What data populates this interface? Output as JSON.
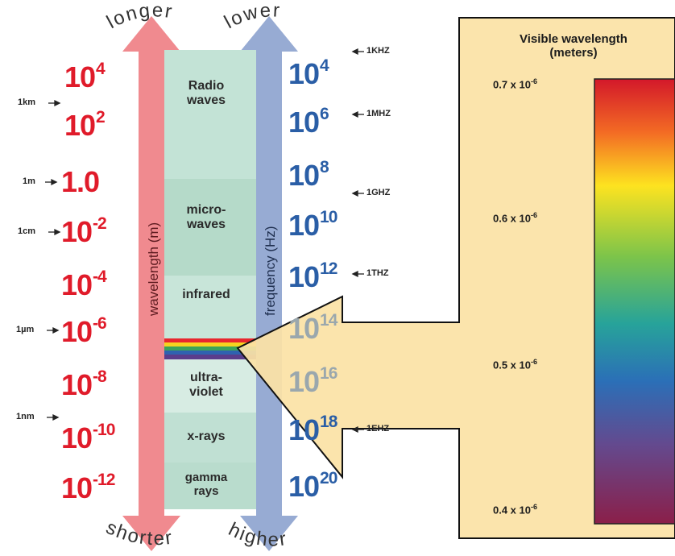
{
  "visible_panel": {
    "title_line1": "Visible wavelength",
    "title_line2": "(meters)",
    "ticks": [
      {
        "base": "0.7 x 10",
        "exp": "-6"
      },
      {
        "base": "0.6 x 10",
        "exp": "-6"
      },
      {
        "base": "0.5 x 10",
        "exp": "-6"
      },
      {
        "base": "0.4 x 10",
        "exp": "-6"
      }
    ]
  },
  "wavelength_axis": {
    "label": "wavelength (m)",
    "top_word": "longer",
    "bottom_word": "shorter",
    "values": [
      {
        "base": "10",
        "exp": "4"
      },
      {
        "base": "10",
        "exp": "2"
      },
      {
        "base": "1.0",
        "exp": ""
      },
      {
        "base": "10",
        "exp": "-2"
      },
      {
        "base": "10",
        "exp": "-4"
      },
      {
        "base": "10",
        "exp": "-6"
      },
      {
        "base": "10",
        "exp": "-8"
      },
      {
        "base": "10",
        "exp": "-10"
      },
      {
        "base": "10",
        "exp": "-12"
      }
    ],
    "markers": [
      "1km",
      "1m",
      "1cm",
      "1µm",
      "1nm"
    ]
  },
  "frequency_axis": {
    "label": "frequency (Hz)",
    "top_word": "lower",
    "bottom_word": "higher",
    "values": [
      {
        "base": "10",
        "exp": "4"
      },
      {
        "base": "10",
        "exp": "6"
      },
      {
        "base": "10",
        "exp": "8"
      },
      {
        "base": "10",
        "exp": "10"
      },
      {
        "base": "10",
        "exp": "12"
      },
      {
        "base": "10",
        "exp": "14"
      },
      {
        "base": "10",
        "exp": "16"
      },
      {
        "base": "10",
        "exp": "18"
      },
      {
        "base": "10",
        "exp": "20"
      }
    ],
    "markers": [
      "1KHZ",
      "1MHZ",
      "1GHZ",
      "1THZ",
      "1EHZ"
    ]
  },
  "bands": [
    {
      "line1": "Radio",
      "line2": "waves"
    },
    {
      "line1": "micro-",
      "line2": "waves"
    },
    {
      "line1": "infrared",
      "line2": ""
    },
    {
      "line1": "ultra-",
      "line2": "violet"
    },
    {
      "line1": "x-rays",
      "line2": ""
    },
    {
      "line1": "gamma",
      "line2": "rays"
    }
  ],
  "colors": {
    "wavelength_red": "#e01b2a",
    "frequency_blue": "#2a5ea6",
    "panel_fill": "#fbe2a6",
    "column_green": "#cfe8de"
  }
}
